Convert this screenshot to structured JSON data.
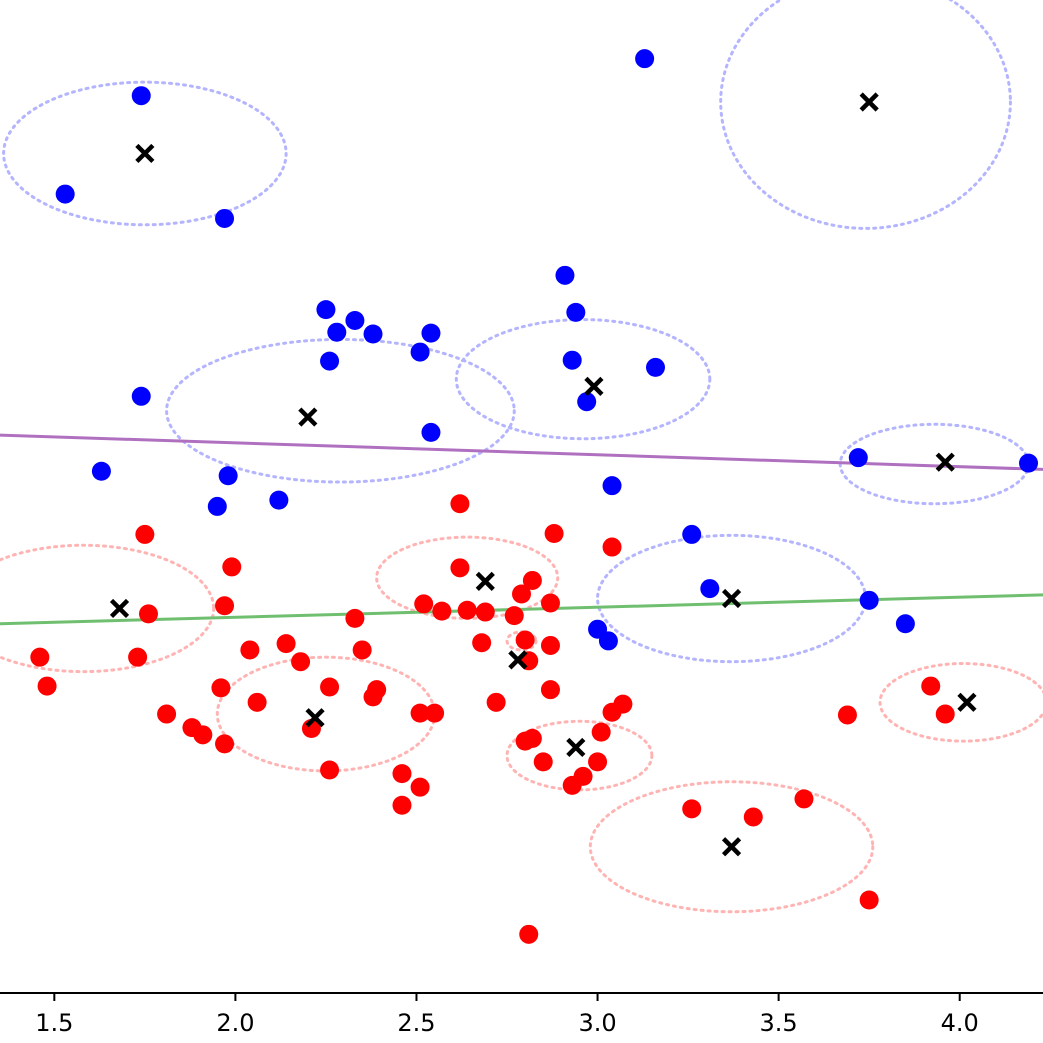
{
  "chart_data": {
    "type": "scatter",
    "title": "",
    "xlabel": "",
    "ylabel": "",
    "xlim": [
      1.35,
      4.23
    ],
    "ylim": [
      0,
      11
    ],
    "x_ticks": [
      {
        "value": 1.5,
        "label": "1.5"
      },
      {
        "value": 2.0,
        "label": "2.0"
      },
      {
        "value": 2.5,
        "label": "2.5"
      },
      {
        "value": 3.0,
        "label": "3.0"
      },
      {
        "value": 3.5,
        "label": "3.5"
      },
      {
        "value": 4.0,
        "label": "4.0"
      }
    ],
    "y_axis_visible": false,
    "grid": false,
    "colors": {
      "blue_class": "#0000ff",
      "red_class": "#ff0000",
      "centers": "#000000",
      "blue_ellipse": "#b4b4ff",
      "red_ellipse": "#ffb4b4",
      "line_purple": "#b070c0",
      "line_green": "#70bf70"
    },
    "series": [
      {
        "class": "blue",
        "points": [
          [
            1.74,
            9.94
          ],
          [
            1.53,
            8.85
          ],
          [
            1.97,
            8.58
          ],
          [
            3.13,
            10.35
          ],
          [
            2.91,
            7.95
          ],
          [
            2.25,
            7.57
          ],
          [
            2.33,
            7.45
          ],
          [
            2.28,
            7.32
          ],
          [
            2.38,
            7.3
          ],
          [
            2.54,
            7.31
          ],
          [
            2.94,
            7.54
          ],
          [
            2.51,
            7.1
          ],
          [
            2.26,
            7.0
          ],
          [
            2.93,
            7.01
          ],
          [
            3.16,
            6.93
          ],
          [
            1.74,
            6.61
          ],
          [
            2.97,
            6.55
          ],
          [
            2.54,
            6.21
          ],
          [
            1.63,
            5.78
          ],
          [
            1.98,
            5.73
          ],
          [
            1.95,
            5.39
          ],
          [
            2.12,
            5.46
          ],
          [
            3.04,
            5.62
          ],
          [
            3.72,
            5.93
          ],
          [
            4.19,
            5.87
          ],
          [
            3.26,
            5.08
          ],
          [
            3.31,
            4.48
          ],
          [
            3.75,
            4.35
          ],
          [
            3.85,
            4.09
          ],
          [
            3.0,
            4.03
          ],
          [
            3.03,
            3.9
          ]
        ]
      },
      {
        "class": "red",
        "points": [
          [
            1.75,
            5.08
          ],
          [
            1.99,
            4.72
          ],
          [
            2.62,
            5.42
          ],
          [
            2.88,
            5.09
          ],
          [
            3.04,
            4.94
          ],
          [
            2.62,
            4.71
          ],
          [
            2.82,
            4.57
          ],
          [
            2.79,
            4.42
          ],
          [
            2.87,
            4.32
          ],
          [
            2.52,
            4.31
          ],
          [
            2.57,
            4.23
          ],
          [
            2.64,
            4.24
          ],
          [
            2.69,
            4.22
          ],
          [
            2.77,
            4.18
          ],
          [
            1.76,
            4.2
          ],
          [
            1.97,
            4.29
          ],
          [
            2.33,
            4.15
          ],
          [
            1.46,
            3.72
          ],
          [
            1.73,
            3.72
          ],
          [
            2.04,
            3.8
          ],
          [
            2.14,
            3.87
          ],
          [
            2.18,
            3.67
          ],
          [
            2.35,
            3.8
          ],
          [
            2.68,
            3.88
          ],
          [
            2.8,
            3.91
          ],
          [
            2.87,
            3.85
          ],
          [
            2.81,
            3.68
          ],
          [
            1.48,
            3.4
          ],
          [
            1.96,
            3.38
          ],
          [
            2.06,
            3.22
          ],
          [
            2.26,
            3.39
          ],
          [
            2.39,
            3.36
          ],
          [
            2.38,
            3.28
          ],
          [
            2.72,
            3.22
          ],
          [
            2.87,
            3.36
          ],
          [
            3.07,
            3.2
          ],
          [
            3.04,
            3.11
          ],
          [
            1.81,
            3.09
          ],
          [
            1.88,
            2.94
          ],
          [
            1.91,
            2.86
          ],
          [
            1.97,
            2.76
          ],
          [
            2.21,
            2.93
          ],
          [
            2.51,
            3.1
          ],
          [
            2.55,
            3.1
          ],
          [
            3.01,
            2.89
          ],
          [
            2.8,
            2.79
          ],
          [
            2.82,
            2.82
          ],
          [
            3.69,
            3.08
          ],
          [
            3.92,
            3.4
          ],
          [
            3.96,
            3.09
          ],
          [
            2.26,
            2.47
          ],
          [
            2.46,
            2.43
          ],
          [
            2.85,
            2.56
          ],
          [
            3.0,
            2.56
          ],
          [
            2.96,
            2.4
          ],
          [
            2.93,
            2.3
          ],
          [
            2.46,
            2.08
          ],
          [
            2.51,
            2.28
          ],
          [
            3.26,
            2.04
          ],
          [
            3.43,
            1.95
          ],
          [
            3.57,
            2.15
          ],
          [
            3.75,
            1.03
          ],
          [
            2.81,
            0.65
          ]
        ]
      }
    ],
    "centers": [
      [
        1.75,
        9.3
      ],
      [
        3.75,
        9.87
      ],
      [
        2.2,
        6.38
      ],
      [
        2.99,
        6.72
      ],
      [
        3.96,
        5.88
      ],
      [
        2.69,
        4.56
      ],
      [
        1.68,
        4.26
      ],
      [
        3.37,
        4.37
      ],
      [
        2.78,
        3.69
      ],
      [
        2.22,
        3.05
      ],
      [
        2.94,
        2.72
      ],
      [
        4.02,
        3.22
      ],
      [
        3.37,
        1.62
      ]
    ],
    "ellipses": [
      {
        "class": "blue",
        "center": [
          1.75,
          9.3
        ],
        "rx": 0.39,
        "ry": 0.79
      },
      {
        "class": "blue",
        "center": [
          3.74,
          9.87
        ],
        "rx": 0.4,
        "ry": 1.4
      },
      {
        "class": "blue",
        "center": [
          2.29,
          6.45
        ],
        "rx": 0.48,
        "ry": 0.79
      },
      {
        "class": "blue",
        "center": [
          2.96,
          6.8
        ],
        "rx": 0.35,
        "ry": 0.66
      },
      {
        "class": "blue",
        "center": [
          3.93,
          5.86
        ],
        "rx": 0.26,
        "ry": 0.44
      },
      {
        "class": "blue",
        "center": [
          3.37,
          4.37
        ],
        "rx": 0.37,
        "ry": 0.7
      },
      {
        "class": "red",
        "center": [
          2.64,
          4.6
        ],
        "rx": 0.25,
        "ry": 0.45
      },
      {
        "class": "red",
        "center": [
          1.58,
          4.26
        ],
        "rx": 0.36,
        "ry": 0.7
      },
      {
        "class": "red",
        "center": [
          2.79,
          3.9
        ],
        "rx": 0.04,
        "ry": 0.1
      },
      {
        "class": "red",
        "center": [
          2.25,
          3.09
        ],
        "rx": 0.3,
        "ry": 0.63
      },
      {
        "class": "red",
        "center": [
          2.95,
          2.63
        ],
        "rx": 0.2,
        "ry": 0.38
      },
      {
        "class": "red",
        "center": [
          4.01,
          3.22
        ],
        "rx": 0.23,
        "ry": 0.43
      },
      {
        "class": "red",
        "center": [
          3.37,
          1.62
        ],
        "rx": 0.39,
        "ry": 0.72
      }
    ],
    "lines": [
      {
        "color": "purple",
        "from": [
          1.35,
          6.18
        ],
        "to": [
          4.23,
          5.8
        ]
      },
      {
        "color": "green",
        "from": [
          1.35,
          4.09
        ],
        "to": [
          4.23,
          4.41
        ]
      }
    ]
  }
}
